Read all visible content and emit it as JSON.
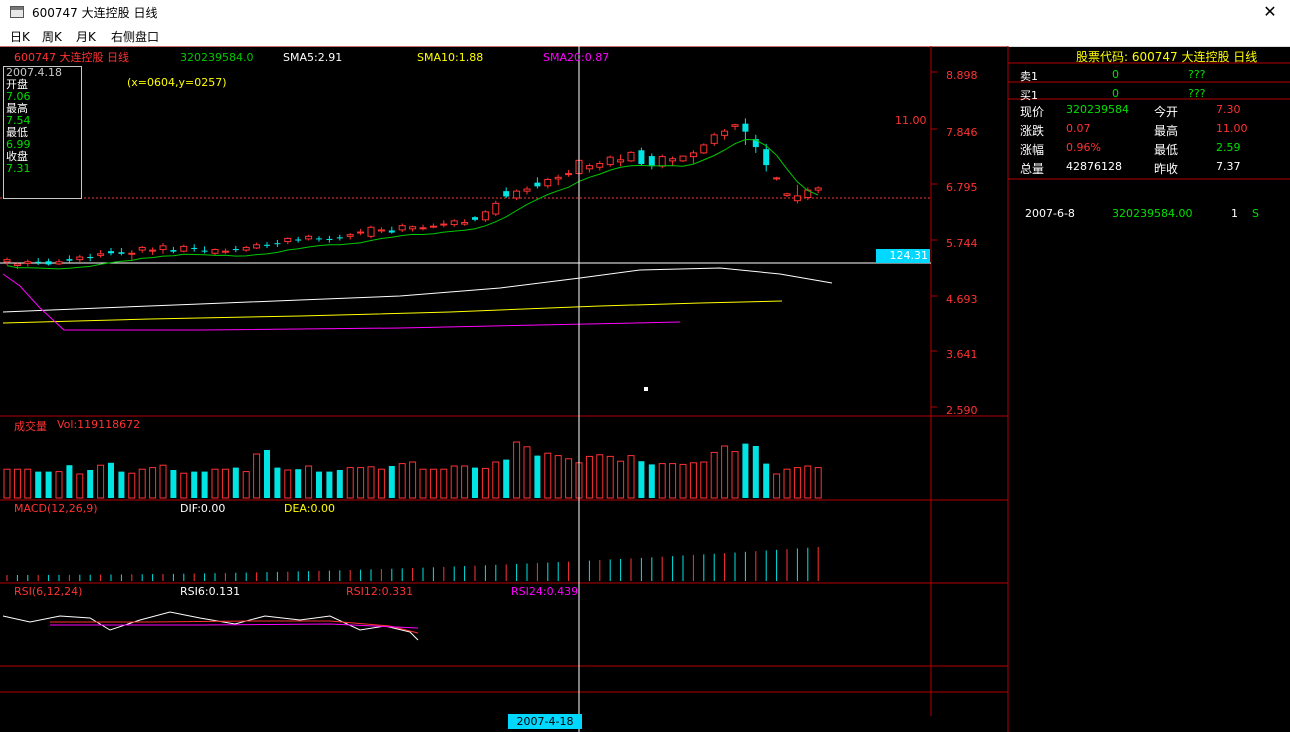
{
  "window": {
    "title": "600747 大连控股 日线",
    "close_label": "✕"
  },
  "menu": {
    "items": [
      {
        "label": "日K"
      },
      {
        "label": "周K"
      },
      {
        "label": "月K"
      },
      {
        "label": "右侧盘口"
      }
    ]
  },
  "header": {
    "stock_label": "600747 大连控股 日线",
    "value": "320239584.0",
    "sma5": "SMA5:2.91",
    "sma10": "SMA10:1.88",
    "sma20": "SMA20:0.87"
  },
  "info_box": {
    "date": "2007.4.18",
    "open_label": "开盘",
    "open": "7.06",
    "high_label": "最高",
    "high": "7.54",
    "low_label": "最低",
    "low": "6.99",
    "close_label": "收盘",
    "close": "7.31"
  },
  "coords_text": "(x=0604,y=0257)",
  "price_axis": [
    "8.898",
    "7.846",
    "6.795",
    "5.744",
    "4.693",
    "3.641",
    "2.590"
  ],
  "peak_label": "11.00",
  "cursor_value": "124.31",
  "date_cursor": "2007-4-18",
  "volume": {
    "title": "成交量",
    "value": "Vol:119118672"
  },
  "macd": {
    "title": "MACD(12,26,9)",
    "dif": "DIF:0.00",
    "dea": "DEA:0.00"
  },
  "rsi": {
    "title": "RSI(6,12,24)",
    "rsi6": "RSI6:0.131",
    "rsi12": "RSI12:0.331",
    "rsi24": "RSI24:0.439"
  },
  "right_panel": {
    "title": "股票代码: 600747 大连控股 日线",
    "sell1": {
      "label": "卖1",
      "qty": "0",
      "price": "???"
    },
    "buy1": {
      "label": "买1",
      "qty": "0",
      "price": "???"
    },
    "stats": [
      {
        "label1": "现价",
        "value1": "320239584",
        "label2": "今开",
        "value2": "7.30"
      },
      {
        "label1": "涨跌",
        "value1": "0.07",
        "label2": "最高",
        "value2": "11.00"
      },
      {
        "label1": "涨幅",
        "value1": "0.96%",
        "label2": "最低",
        "value2": "2.59"
      },
      {
        "label1": "总量",
        "value1": "42876128",
        "label2": "昨收",
        "value2": "7.37"
      }
    ],
    "trade": {
      "date": "2007-6-8",
      "price": "320239584.00",
      "qty": "1",
      "side": "S"
    }
  },
  "colors": {
    "up": "#ff3232",
    "down": "#00e4e4",
    "grid": "#b40000",
    "axis_text": "#ff3232",
    "sma5": "#ffffff",
    "sma10": "#ffff00",
    "sma20": "#ff00ff",
    "green_line": "#00c800"
  },
  "chart_data": {
    "type": "candlestick",
    "price_axis_range": [
      2.59,
      8.898
    ],
    "candles_ohlc": [
      [
        5.4,
        5.48,
        5.34,
        5.44
      ],
      [
        5.33,
        5.4,
        5.26,
        5.36
      ],
      [
        5.37,
        5.44,
        5.31,
        5.4
      ],
      [
        5.4,
        5.47,
        5.34,
        5.38
      ],
      [
        5.41,
        5.46,
        5.33,
        5.35
      ],
      [
        5.36,
        5.45,
        5.34,
        5.4
      ],
      [
        5.45,
        5.52,
        5.39,
        5.42
      ],
      [
        5.44,
        5.53,
        5.38,
        5.49
      ],
      [
        5.49,
        5.55,
        5.41,
        5.47
      ],
      [
        5.52,
        5.62,
        5.48,
        5.55
      ],
      [
        5.6,
        5.66,
        5.52,
        5.56
      ],
      [
        5.58,
        5.66,
        5.52,
        5.55
      ],
      [
        5.55,
        5.62,
        5.42,
        5.56
      ],
      [
        5.62,
        5.7,
        5.57,
        5.67
      ],
      [
        5.6,
        5.67,
        5.53,
        5.62
      ],
      [
        5.63,
        5.75,
        5.55,
        5.7
      ],
      [
        5.62,
        5.68,
        5.56,
        5.59
      ],
      [
        5.6,
        5.72,
        5.58,
        5.69
      ],
      [
        5.66,
        5.73,
        5.59,
        5.65
      ],
      [
        5.61,
        5.69,
        5.56,
        5.6
      ],
      [
        5.56,
        5.65,
        5.52,
        5.63
      ],
      [
        5.58,
        5.65,
        5.55,
        5.6
      ],
      [
        5.64,
        5.7,
        5.58,
        5.62
      ],
      [
        5.62,
        5.7,
        5.59,
        5.67
      ],
      [
        5.66,
        5.76,
        5.64,
        5.72
      ],
      [
        5.72,
        5.77,
        5.66,
        5.7
      ],
      [
        5.75,
        5.81,
        5.68,
        5.74
      ],
      [
        5.78,
        5.86,
        5.73,
        5.84
      ],
      [
        5.82,
        5.87,
        5.76,
        5.8
      ],
      [
        5.83,
        5.91,
        5.8,
        5.88
      ],
      [
        5.84,
        5.88,
        5.78,
        5.83
      ],
      [
        5.83,
        5.89,
        5.76,
        5.81
      ],
      [
        5.86,
        5.91,
        5.8,
        5.84
      ],
      [
        5.88,
        5.94,
        5.82,
        5.91
      ],
      [
        5.95,
        6.02,
        5.9,
        5.96
      ],
      [
        5.88,
        6.08,
        5.84,
        6.05
      ],
      [
        5.98,
        6.05,
        5.94,
        6.0
      ],
      [
        5.99,
        6.06,
        5.93,
        5.95
      ],
      [
        6.0,
        6.12,
        5.96,
        6.08
      ],
      [
        6.02,
        6.08,
        5.97,
        6.06
      ],
      [
        6.03,
        6.1,
        5.99,
        6.04
      ],
      [
        6.07,
        6.12,
        6.03,
        6.07
      ],
      [
        6.1,
        6.18,
        6.05,
        6.11
      ],
      [
        6.1,
        6.2,
        6.06,
        6.17
      ],
      [
        6.11,
        6.2,
        6.08,
        6.14
      ],
      [
        6.24,
        6.26,
        6.16,
        6.19
      ],
      [
        6.19,
        6.37,
        6.15,
        6.34
      ],
      [
        6.3,
        6.55,
        6.26,
        6.5
      ],
      [
        6.73,
        6.8,
        6.6,
        6.63
      ],
      [
        6.6,
        6.76,
        6.56,
        6.73
      ],
      [
        6.73,
        6.82,
        6.67,
        6.77
      ],
      [
        6.89,
        6.99,
        6.78,
        6.82
      ],
      [
        6.83,
        6.98,
        6.78,
        6.95
      ],
      [
        6.96,
        7.04,
        6.84,
        6.99
      ],
      [
        7.06,
        7.13,
        7.0,
        7.06
      ],
      [
        7.06,
        7.54,
        6.99,
        7.31
      ],
      [
        7.15,
        7.25,
        7.08,
        7.21
      ],
      [
        7.18,
        7.3,
        7.12,
        7.25
      ],
      [
        7.23,
        7.4,
        7.19,
        7.37
      ],
      [
        7.28,
        7.42,
        7.2,
        7.32
      ],
      [
        7.3,
        7.48,
        7.28,
        7.46
      ],
      [
        7.5,
        7.55,
        7.22,
        7.24
      ],
      [
        7.39,
        7.44,
        7.14,
        7.2
      ],
      [
        7.2,
        7.42,
        7.16,
        7.38
      ],
      [
        7.3,
        7.38,
        7.2,
        7.34
      ],
      [
        7.3,
        7.4,
        7.28,
        7.39
      ],
      [
        7.38,
        7.5,
        7.25,
        7.45
      ],
      [
        7.45,
        7.63,
        7.43,
        7.6
      ],
      [
        7.63,
        7.83,
        7.58,
        7.79
      ],
      [
        7.78,
        7.9,
        7.7,
        7.86
      ],
      [
        7.95,
        8.0,
        7.88,
        7.98
      ],
      [
        8.0,
        8.1,
        7.6,
        7.85
      ],
      [
        7.71,
        7.79,
        7.45,
        7.56
      ],
      [
        7.52,
        7.62,
        7.1,
        7.22
      ],
      [
        6.96,
        7.0,
        6.93,
        6.98
      ],
      [
        6.65,
        6.7,
        6.62,
        6.68
      ],
      [
        6.55,
        6.85,
        6.5,
        6.64
      ],
      [
        6.61,
        6.8,
        6.56,
        6.75
      ],
      [
        6.75,
        6.82,
        6.69,
        6.79
      ]
    ],
    "volume_series": [
      0.36,
      0.36,
      0.36,
      0.33,
      0.33,
      0.33,
      0.41,
      0.3,
      0.35,
      0.41,
      0.44,
      0.33,
      0.31,
      0.36,
      0.38,
      0.41,
      0.35,
      0.31,
      0.33,
      0.33,
      0.36,
      0.36,
      0.38,
      0.33,
      0.55,
      0.6,
      0.38,
      0.35,
      0.36,
      0.4,
      0.33,
      0.33,
      0.35,
      0.38,
      0.38,
      0.39,
      0.36,
      0.4,
      0.43,
      0.45,
      0.36,
      0.36,
      0.36,
      0.4,
      0.4,
      0.38,
      0.37,
      0.45,
      0.48,
      0.7,
      0.64,
      0.53,
      0.56,
      0.53,
      0.49,
      0.44,
      0.52,
      0.54,
      0.52,
      0.46,
      0.53,
      0.46,
      0.42,
      0.43,
      0.43,
      0.42,
      0.44,
      0.45,
      0.57,
      0.65,
      0.58,
      0.68,
      0.65,
      0.43,
      0.3,
      0.36,
      0.38,
      0.4,
      0.38
    ]
  }
}
